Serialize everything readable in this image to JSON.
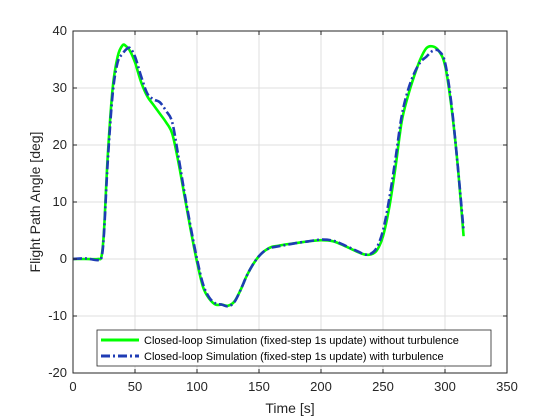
{
  "chart_data": {
    "type": "line",
    "xlabel": "Time [s]",
    "ylabel": "Flight Path Angle [deg]",
    "xlim": [
      0,
      350
    ],
    "ylim": [
      -20,
      40
    ],
    "xticks": [
      0,
      50,
      100,
      150,
      200,
      250,
      300,
      350
    ],
    "yticks": [
      -20,
      -10,
      0,
      10,
      20,
      30,
      40
    ],
    "grid": true,
    "legend_position": "bottom-center",
    "limit_lines": [
      {
        "y": 40,
        "color": "#c46060"
      },
      {
        "y": -20,
        "color": "#c46060"
      }
    ],
    "series": [
      {
        "name": "Closed-loop Simulation (fixed-step 1s update) without turbulence",
        "color": "#00ff00",
        "style": "solid",
        "x": [
          0,
          10,
          20,
          23,
          25,
          28,
          32,
          36,
          40,
          43,
          46,
          50,
          55,
          60,
          65,
          70,
          75,
          80,
          85,
          90,
          95,
          100,
          105,
          110,
          115,
          120,
          125,
          130,
          135,
          140,
          145,
          150,
          155,
          160,
          165,
          170,
          180,
          190,
          200,
          210,
          220,
          230,
          235,
          240,
          245,
          250,
          255,
          260,
          265,
          270,
          275,
          280,
          285,
          290,
          295,
          300,
          305,
          310,
          315
        ],
        "y": [
          0,
          0,
          0,
          0.5,
          5,
          18,
          30,
          35.5,
          37.5,
          37.3,
          36.5,
          34.5,
          31,
          28.5,
          27,
          25.5,
          24,
          22,
          17,
          11,
          5,
          -0.5,
          -5,
          -7,
          -8,
          -8,
          -8.2,
          -7.5,
          -5.5,
          -3,
          -1,
          0.5,
          1.5,
          2.1,
          2.3,
          2.5,
          2.8,
          3.1,
          3.3,
          3.1,
          2.2,
          1.2,
          0.8,
          0.8,
          1.5,
          4,
          9,
          16,
          24,
          28.5,
          32,
          35,
          37,
          37.3,
          36.5,
          34,
          27,
          17,
          4
        ]
      },
      {
        "name": "Closed-loop Simulation (fixed-step 1s update) with turbulence",
        "color": "#1f3cb4",
        "style": "dashdot",
        "x": [
          0,
          10,
          20,
          23,
          25,
          28,
          32,
          36,
          40,
          43,
          46,
          50,
          55,
          60,
          65,
          70,
          75,
          80,
          85,
          90,
          95,
          100,
          105,
          110,
          115,
          120,
          125,
          130,
          135,
          140,
          145,
          150,
          155,
          160,
          165,
          170,
          180,
          190,
          200,
          210,
          220,
          230,
          235,
          240,
          245,
          250,
          255,
          260,
          265,
          270,
          275,
          280,
          285,
          290,
          295,
          300,
          305,
          310,
          315
        ],
        "y": [
          0,
          0.1,
          -0.2,
          0.3,
          4.5,
          17,
          29,
          34.5,
          36,
          36.8,
          37,
          35.5,
          32,
          29,
          28,
          27.5,
          26,
          24,
          18,
          11.5,
          5.5,
          0,
          -4.5,
          -6.8,
          -7.8,
          -8,
          -8.3,
          -7.6,
          -5.5,
          -3,
          -1,
          0.5,
          1.5,
          2,
          2.2,
          2.4,
          2.8,
          3.1,
          3.4,
          3.2,
          2.3,
          1.3,
          0.8,
          0.9,
          2,
          5,
          10.5,
          17.5,
          25,
          29.5,
          32.5,
          34.5,
          35.5,
          36.5,
          36.5,
          34.5,
          27.5,
          17,
          5
        ]
      }
    ]
  }
}
